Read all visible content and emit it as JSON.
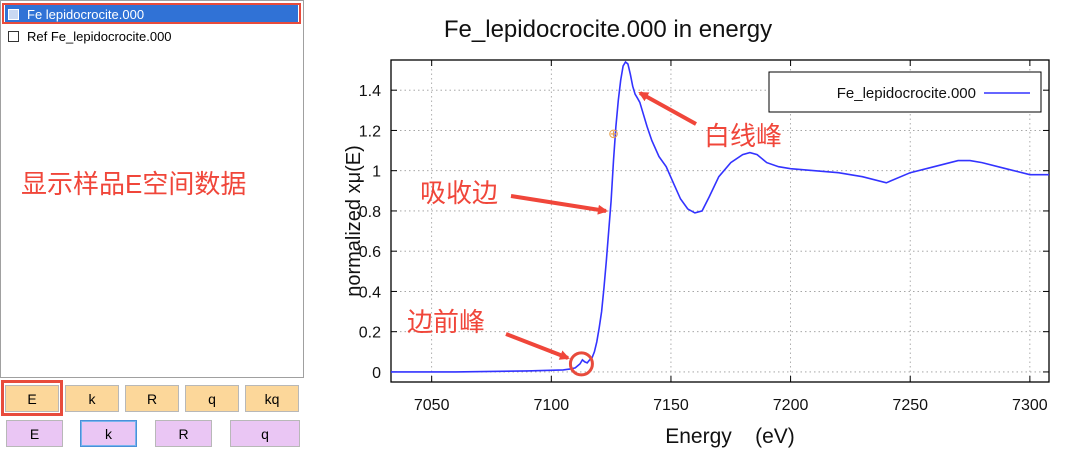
{
  "groups": [
    {
      "label": "Fe lepidocrocite.000",
      "selected": true,
      "checked": false
    },
    {
      "label": "Ref Fe_lepidocrocite.000",
      "selected": false,
      "checked": false
    }
  ],
  "panel_note": "显示样品E空间数据",
  "buttons_row1": [
    "E",
    "k",
    "R",
    "q",
    "kq"
  ],
  "buttons_row2": [
    "E",
    "k",
    "R",
    "q"
  ],
  "colors": {
    "accent": "#e84b3c",
    "series": "#3333ff",
    "selection": "#3072d6"
  },
  "chart_data": {
    "type": "line",
    "title": "Fe_lepidocrocite.000 in energy",
    "xlabel": "Energy    (eV)",
    "ylabel": "normalized xμ(E)",
    "xlim": [
      7033,
      7308
    ],
    "ylim": [
      -0.05,
      1.55
    ],
    "xticks": [
      7050,
      7100,
      7150,
      7200,
      7250,
      7300
    ],
    "yticks": [
      0,
      0.2,
      0.4,
      0.6,
      0.8,
      1,
      1.2,
      1.4
    ],
    "ytick_labels": [
      "0",
      "0.2",
      "0.4",
      "0.6",
      "0.8",
      "1",
      "1.2",
      "1.4"
    ],
    "legend": {
      "label": "Fe_lepidocrocite.000",
      "position": "top-right"
    },
    "series": [
      {
        "name": "Fe_lepidocrocite.000",
        "x": [
          7033,
          7060,
          7090,
          7105,
          7108,
          7110,
          7112,
          7113,
          7114,
          7115,
          7116,
          7117,
          7118,
          7119,
          7120,
          7121,
          7122,
          7123,
          7124,
          7125,
          7126,
          7127,
          7128,
          7129,
          7130,
          7131,
          7132,
          7133,
          7134,
          7135,
          7136,
          7137,
          7138,
          7140,
          7142,
          7145,
          7148,
          7151,
          7154,
          7157,
          7160,
          7163,
          7166,
          7170,
          7175,
          7180,
          7183,
          7186,
          7190,
          7195,
          7200,
          7210,
          7220,
          7230,
          7240,
          7250,
          7260,
          7270,
          7275,
          7280,
          7290,
          7300,
          7308
        ],
        "y": [
          0.0,
          0.0,
          0.005,
          0.01,
          0.015,
          0.02,
          0.04,
          0.06,
          0.05,
          0.045,
          0.06,
          0.07,
          0.1,
          0.15,
          0.22,
          0.3,
          0.42,
          0.55,
          0.7,
          0.85,
          1.05,
          1.22,
          1.35,
          1.45,
          1.52,
          1.54,
          1.53,
          1.48,
          1.42,
          1.38,
          1.36,
          1.34,
          1.3,
          1.22,
          1.15,
          1.07,
          1.02,
          0.94,
          0.86,
          0.81,
          0.79,
          0.8,
          0.87,
          0.97,
          1.04,
          1.08,
          1.09,
          1.08,
          1.04,
          1.02,
          1.01,
          1.0,
          0.99,
          0.97,
          0.94,
          0.99,
          1.02,
          1.05,
          1.05,
          1.04,
          1.01,
          0.98,
          0.98
        ]
      }
    ],
    "markers": [
      {
        "x": 7126,
        "y": 1.18,
        "label": "⊕"
      }
    ],
    "annotations": [
      {
        "text": "白线峰",
        "target_x": 7133,
        "target_y": 1.44
      },
      {
        "text": "吸收边",
        "target_x": 7121,
        "target_y": 0.83
      },
      {
        "text": "边前峰",
        "target_x": 7113,
        "target_y": 0.04
      }
    ]
  }
}
